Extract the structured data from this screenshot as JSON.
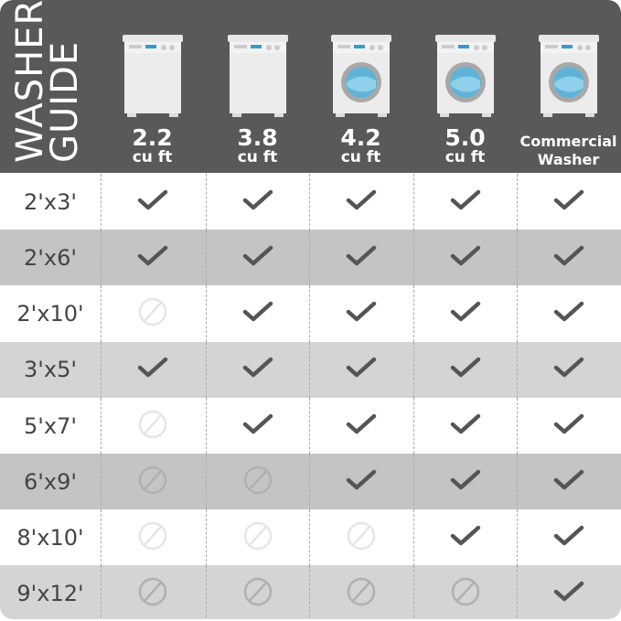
{
  "title_line1": "WASHER",
  "title_line2": "GUIDE",
  "columns": [
    {
      "value": "2.2",
      "unit": "cu ft",
      "type": "top-load"
    },
    {
      "value": "3.8",
      "unit": "cu ft",
      "type": "top-load"
    },
    {
      "value": "4.2",
      "unit": "cu ft",
      "type": "front-load"
    },
    {
      "value": "5.0",
      "unit": "cu ft",
      "type": "front-load"
    },
    {
      "value": "Commercial",
      "unit": "Washer",
      "type": "front-load"
    }
  ],
  "rows": [
    {
      "size": "2'x3'",
      "fit": [
        1,
        1,
        1,
        1,
        1
      ]
    },
    {
      "size": "2'x6'",
      "fit": [
        1,
        1,
        1,
        1,
        1
      ]
    },
    {
      "size": "2'x10'",
      "fit": [
        0,
        1,
        1,
        1,
        1
      ]
    },
    {
      "size": "3'x5'",
      "fit": [
        1,
        1,
        1,
        1,
        1
      ]
    },
    {
      "size": "5'x7'",
      "fit": [
        0,
        1,
        1,
        1,
        1
      ]
    },
    {
      "size": "6'x9'",
      "fit": [
        0,
        0,
        1,
        1,
        1
      ]
    },
    {
      "size": "8'x10'",
      "fit": [
        0,
        0,
        0,
        1,
        1
      ]
    },
    {
      "size": "9'x12'",
      "fit": [
        0,
        0,
        0,
        0,
        1
      ]
    }
  ],
  "icons": {
    "yes": "check-icon",
    "no": "prohibited-icon"
  },
  "colors": {
    "header": "#595959",
    "row_white": "#ffffff",
    "row_dark": "#c4c4c4",
    "row_light": "#d4d4d4",
    "check": "#555555"
  }
}
